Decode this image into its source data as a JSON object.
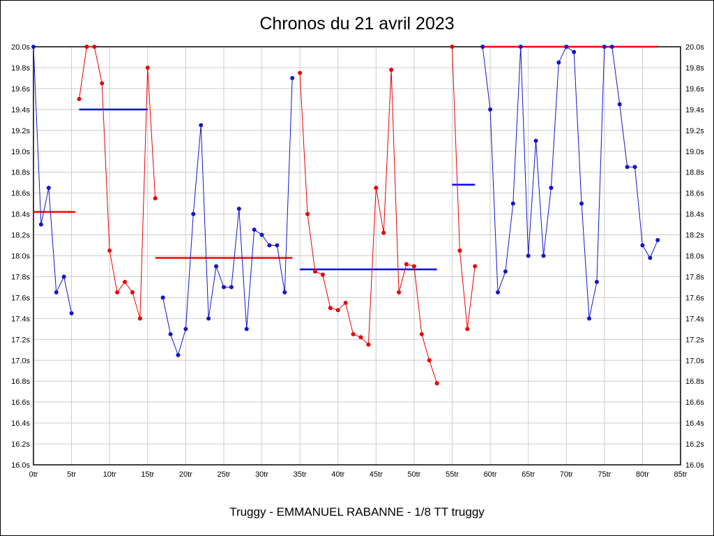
{
  "chart_data": {
    "type": "line",
    "title": "Chronos du 21 avril 2023",
    "footer": "Truggy - EMMANUEL RABANNE - 1/8 TT truggy",
    "x_unit": "tr",
    "y_unit": "s",
    "xlim": [
      0,
      85
    ],
    "ylim": [
      16.0,
      20.0
    ],
    "x_tick_step": 5,
    "y_tick_step": 0.2,
    "grid": true,
    "legend_position": "none",
    "x_tick_labels": [
      "0tr",
      "5tr",
      "10tr",
      "15tr",
      "20tr",
      "25tr",
      "30tr",
      "35tr",
      "40tr",
      "45tr",
      "50tr",
      "55tr",
      "60tr",
      "65tr",
      "70tr",
      "75tr",
      "80tr",
      "85tr"
    ],
    "y_tick_labels": [
      "20.0s",
      "19.8s",
      "19.6s",
      "19.4s",
      "19.2s",
      "19.0s",
      "18.8s",
      "18.6s",
      "18.4s",
      "18.2s",
      "18.0s",
      "17.8s",
      "17.6s",
      "17.4s",
      "17.2s",
      "17.0s",
      "16.8s",
      "16.6s",
      "16.4s",
      "16.2s",
      "16.0s"
    ],
    "colors": {
      "run_blue": "#1414cc",
      "run_red": "#e80000",
      "avg_blue": "#0000ff",
      "avg_red": "#ff0000",
      "grid": "#cccccc",
      "axis": "#000000"
    },
    "series": [
      {
        "name": "run-1-blue",
        "color_key": "run_blue",
        "points": [
          [
            0,
            20.0
          ],
          [
            1,
            18.3
          ],
          [
            2,
            18.65
          ],
          [
            3,
            17.65
          ],
          [
            4,
            17.8
          ],
          [
            5,
            17.45
          ]
        ]
      },
      {
        "name": "run-2-red",
        "color_key": "run_red",
        "points": [
          [
            6,
            19.5
          ],
          [
            7,
            20.0
          ],
          [
            8,
            20.0
          ],
          [
            9,
            19.65
          ],
          [
            10,
            18.05
          ],
          [
            11,
            17.65
          ],
          [
            12,
            17.75
          ],
          [
            13,
            17.65
          ],
          [
            14,
            17.4
          ],
          [
            15,
            19.8
          ],
          [
            16,
            18.55
          ]
        ]
      },
      {
        "name": "run-3-blue",
        "color_key": "run_blue",
        "points": [
          [
            17,
            17.6
          ],
          [
            18,
            17.25
          ],
          [
            19,
            17.05
          ],
          [
            20,
            17.3
          ],
          [
            21,
            18.4
          ],
          [
            22,
            19.25
          ],
          [
            23,
            17.4
          ],
          [
            24,
            17.9
          ],
          [
            25,
            17.7
          ],
          [
            26,
            17.7
          ],
          [
            27,
            18.45
          ],
          [
            28,
            17.3
          ],
          [
            29,
            18.25
          ],
          [
            30,
            18.2
          ],
          [
            31,
            18.1
          ],
          [
            32,
            18.1
          ],
          [
            33,
            17.65
          ],
          [
            34,
            19.7
          ]
        ]
      },
      {
        "name": "run-4-red",
        "color_key": "run_red",
        "points": [
          [
            35,
            19.75
          ],
          [
            36,
            18.4
          ],
          [
            37,
            17.85
          ],
          [
            38,
            17.82
          ],
          [
            39,
            17.5
          ],
          [
            40,
            17.48
          ],
          [
            41,
            17.55
          ],
          [
            42,
            17.25
          ],
          [
            43,
            17.22
          ],
          [
            44,
            17.15
          ],
          [
            45,
            18.65
          ],
          [
            46,
            18.22
          ],
          [
            47,
            19.78
          ],
          [
            48,
            17.65
          ],
          [
            49,
            17.92
          ],
          [
            50,
            17.9
          ],
          [
            51,
            17.25
          ],
          [
            52,
            17.0
          ],
          [
            53,
            16.78
          ]
        ]
      },
      {
        "name": "run-5-red",
        "color_key": "run_red",
        "points": [
          [
            55,
            20.0
          ],
          [
            56,
            18.05
          ],
          [
            57,
            17.3
          ],
          [
            58,
            17.9
          ]
        ]
      },
      {
        "name": "run-6-blue",
        "color_key": "run_blue",
        "points": [
          [
            59,
            20.0
          ],
          [
            60,
            19.4
          ],
          [
            61,
            17.65
          ],
          [
            62,
            17.85
          ],
          [
            63,
            18.5
          ],
          [
            64,
            20.0
          ],
          [
            65,
            18.0
          ],
          [
            66,
            19.1
          ],
          [
            67,
            18.0
          ],
          [
            68,
            18.65
          ],
          [
            69,
            19.85
          ],
          [
            70,
            20.0
          ],
          [
            71,
            19.95
          ],
          [
            72,
            18.5
          ],
          [
            73,
            17.4
          ],
          [
            74,
            17.75
          ],
          [
            75,
            20.0
          ],
          [
            76,
            20.0
          ],
          [
            77,
            19.45
          ],
          [
            78,
            18.85
          ],
          [
            79,
            18.85
          ],
          [
            80,
            18.1
          ],
          [
            81,
            17.98
          ],
          [
            82,
            18.15
          ]
        ]
      }
    ],
    "avg_lines": [
      {
        "name": "avg-run-1",
        "color_key": "avg_red",
        "y": 18.42,
        "x1": 0,
        "x2": 5.5
      },
      {
        "name": "avg-run-2",
        "color_key": "avg_blue",
        "y": 19.4,
        "x1": 6,
        "x2": 15
      },
      {
        "name": "avg-run-3",
        "color_key": "avg_red",
        "y": 17.98,
        "x1": 16,
        "x2": 34
      },
      {
        "name": "avg-run-4",
        "color_key": "avg_blue",
        "y": 17.87,
        "x1": 35,
        "x2": 53
      },
      {
        "name": "avg-run-5",
        "color_key": "avg_blue",
        "y": 18.68,
        "x1": 55,
        "x2": 58
      },
      {
        "name": "avg-run-6",
        "color_key": "avg_red",
        "y": 20.0,
        "x1": 59,
        "x2": 82
      }
    ]
  }
}
